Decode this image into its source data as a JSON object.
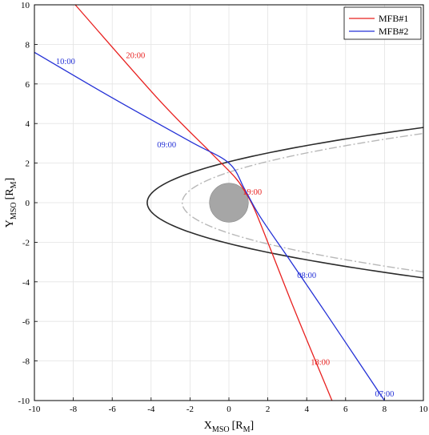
{
  "chart_data": {
    "type": "line",
    "xlabel": {
      "main": "X",
      "sub": "MSO",
      "unit": "[R",
      "unit_sub": "M",
      "unit_close": "]"
    },
    "ylabel": {
      "main": "Y",
      "sub": "MSO",
      "unit": "[R",
      "unit_sub": "M",
      "unit_close": "]"
    },
    "xlim": [
      -10,
      10
    ],
    "ylim": [
      -10,
      10
    ],
    "xticks": [
      -10,
      -8,
      -6,
      -4,
      -2,
      0,
      2,
      4,
      6,
      8,
      10
    ],
    "yticks": [
      -10,
      -8,
      -6,
      -4,
      -2,
      0,
      2,
      4,
      6,
      8,
      10
    ],
    "grid": true,
    "legend_position": "top-right",
    "series": [
      {
        "name": "MFB#1",
        "color": "#e8201f",
        "points": [
          [
            -7.9,
            10
          ],
          [
            -3.6,
            5.2
          ],
          [
            -1.0,
            2.6
          ],
          [
            0.3,
            1.3
          ],
          [
            0.8,
            0.6
          ],
          [
            1.3,
            -0.3
          ],
          [
            2.2,
            -2.5
          ],
          [
            3.2,
            -5
          ],
          [
            4.2,
            -7.4
          ],
          [
            5.3,
            -10
          ]
        ],
        "time_labels": [
          {
            "text": "20:00",
            "x": -4.8,
            "y": 7.3
          },
          {
            "text": "19:00",
            "x": 1.2,
            "y": 0.4
          },
          {
            "text": "18:00",
            "x": 4.7,
            "y": -8.2
          }
        ]
      },
      {
        "name": "MFB#2",
        "color": "#2431d6",
        "points": [
          [
            -10,
            7.6
          ],
          [
            -6,
            5.3
          ],
          [
            -2.0,
            3.1
          ],
          [
            0.0,
            2.0
          ],
          [
            0.8,
            0.7
          ],
          [
            1.6,
            -0.7
          ],
          [
            3.2,
            -3.0
          ],
          [
            5.0,
            -5.6
          ],
          [
            6.5,
            -7.8
          ],
          [
            8.0,
            -10
          ]
        ],
        "time_labels": [
          {
            "text": "10:00",
            "x": -8.4,
            "y": 7.0
          },
          {
            "text": "09:00",
            "x": -3.2,
            "y": 2.8
          },
          {
            "text": "08:00",
            "x": 4.0,
            "y": -3.8
          },
          {
            "text": "07:00",
            "x": 8.0,
            "y": -9.8
          }
        ]
      }
    ],
    "boundaries": [
      {
        "color": "#2b2b2b",
        "style": "solid",
        "nose_x": -4.2,
        "end_x": 10,
        "end_y": 3.8
      },
      {
        "color": "#b8b8b8",
        "style": "dashed",
        "nose_x": -2.4,
        "end_x": 10,
        "end_y": 3.5
      }
    ],
    "planet": {
      "center": [
        0,
        0
      ],
      "radius": 1.0,
      "color": "#a6a6a6"
    }
  }
}
